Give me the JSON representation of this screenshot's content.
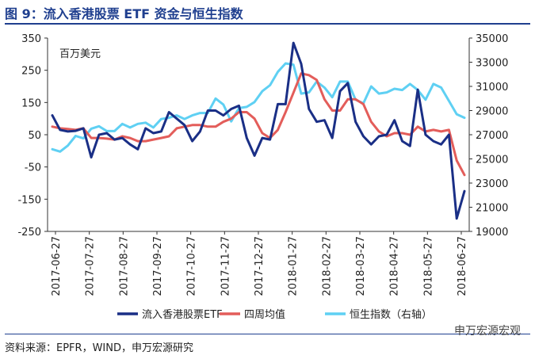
{
  "header": {
    "title": "图 9：流入香港股票 ETF 资金与恒生指数"
  },
  "footer": {
    "source": "资料来源：EPFR，WIND，申万宏源研究",
    "watermark": "申万宏源宏观"
  },
  "chart_data": {
    "type": "line",
    "unit_label": "百万美元",
    "x_ticks": [
      "2017-06-27",
      "2017-07-27",
      "2017-08-27",
      "2017-09-27",
      "2017-10-27",
      "2017-11-27",
      "2017-12-27",
      "2018-01-27",
      "2018-02-27",
      "2018-03-27",
      "2018-04-27",
      "2018-05-27",
      "2018-06-27"
    ],
    "y_left": {
      "ticks": [
        350,
        250,
        150,
        50,
        -50,
        -150,
        -250
      ],
      "range": [
        -250,
        350
      ]
    },
    "y_right": {
      "ticks": [
        35000,
        33000,
        31000,
        29000,
        27000,
        25000,
        23000,
        21000,
        19000
      ],
      "range": [
        19000,
        35000
      ]
    },
    "series": [
      {
        "name": "流入香港股票ETF",
        "axis": "left",
        "color": "#1a2f86",
        "values": [
          110,
          65,
          60,
          62,
          70,
          -20,
          50,
          55,
          35,
          40,
          20,
          5,
          70,
          55,
          60,
          120,
          100,
          80,
          30,
          60,
          125,
          125,
          110,
          130,
          140,
          40,
          -15,
          40,
          35,
          145,
          145,
          335,
          270,
          130,
          90,
          95,
          40,
          185,
          210,
          90,
          45,
          20,
          45,
          50,
          95,
          30,
          15,
          190,
          50,
          30,
          20,
          50,
          -210,
          -125
        ]
      },
      {
        "name": "四周均值",
        "axis": "left",
        "color": "#e35d5a",
        "values": [
          75,
          70,
          68,
          65,
          70,
          40,
          40,
          38,
          35,
          45,
          40,
          30,
          30,
          35,
          40,
          45,
          70,
          75,
          80,
          80,
          75,
          75,
          90,
          100,
          120,
          120,
          100,
          55,
          40,
          65,
          120,
          180,
          240,
          235,
          220,
          160,
          125,
          125,
          160,
          160,
          145,
          90,
          60,
          45,
          55,
          55,
          50,
          75,
          60,
          65,
          60,
          65,
          -30,
          -75
        ]
      },
      {
        "name": "恒生指数（右轴）",
        "axis": "right",
        "color": "#5fd0f3",
        "values": [
          25800,
          25600,
          26100,
          26900,
          26700,
          27500,
          27700,
          27300,
          27300,
          27900,
          27600,
          27900,
          28000,
          27600,
          28300,
          28400,
          28600,
          28300,
          28600,
          28800,
          28800,
          30000,
          29500,
          28100,
          29200,
          29300,
          29700,
          30600,
          31100,
          32200,
          32900,
          32800,
          30400,
          30500,
          31400,
          30900,
          30100,
          31400,
          31400,
          29900,
          29600,
          31000,
          30400,
          30500,
          30800,
          30700,
          31200,
          30700,
          29900,
          31200,
          30900,
          29800,
          28700,
          28400
        ]
      }
    ],
    "legend": {
      "position": "bottom"
    },
    "grid": false
  }
}
